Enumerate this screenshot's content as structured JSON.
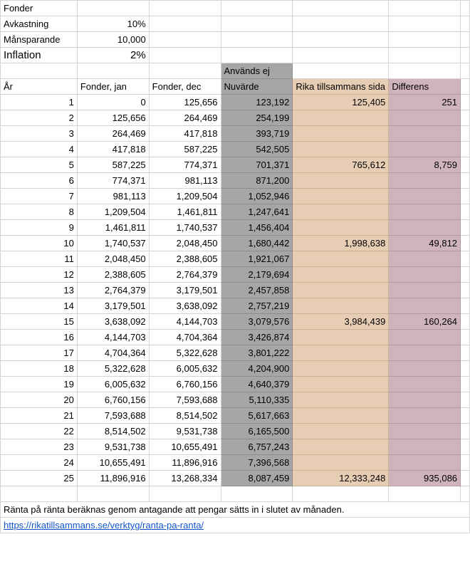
{
  "params": {
    "fonder_label": "Fonder",
    "avkastning_label": "Avkastning",
    "avkastning_value": "10%",
    "manspar_label": "Månsparande",
    "manspar_value": "10,000",
    "inflation_label": "Inflation",
    "inflation_value": "2%"
  },
  "headers": {
    "unused_note": "Används ej",
    "year": "År",
    "fonder_jan": "Fonder, jan",
    "fonder_dec": "Fonder, dec",
    "nuvarde": "Nuvärde",
    "rika_sida": "Rika tillsammans sida",
    "differens": "Differens"
  },
  "rows": [
    {
      "year": "1",
      "jan": "0",
      "dec": "125,656",
      "nuv": "123,192",
      "rika": "125,405",
      "diff": "251"
    },
    {
      "year": "2",
      "jan": "125,656",
      "dec": "264,469",
      "nuv": "254,199",
      "rika": "",
      "diff": ""
    },
    {
      "year": "3",
      "jan": "264,469",
      "dec": "417,818",
      "nuv": "393,719",
      "rika": "",
      "diff": ""
    },
    {
      "year": "4",
      "jan": "417,818",
      "dec": "587,225",
      "nuv": "542,505",
      "rika": "",
      "diff": ""
    },
    {
      "year": "5",
      "jan": "587,225",
      "dec": "774,371",
      "nuv": "701,371",
      "rika": "765,612",
      "diff": "8,759"
    },
    {
      "year": "6",
      "jan": "774,371",
      "dec": "981,113",
      "nuv": "871,200",
      "rika": "",
      "diff": ""
    },
    {
      "year": "7",
      "jan": "981,113",
      "dec": "1,209,504",
      "nuv": "1,052,946",
      "rika": "",
      "diff": ""
    },
    {
      "year": "8",
      "jan": "1,209,504",
      "dec": "1,461,811",
      "nuv": "1,247,641",
      "rika": "",
      "diff": ""
    },
    {
      "year": "9",
      "jan": "1,461,811",
      "dec": "1,740,537",
      "nuv": "1,456,404",
      "rika": "",
      "diff": ""
    },
    {
      "year": "10",
      "jan": "1,740,537",
      "dec": "2,048,450",
      "nuv": "1,680,442",
      "rika": "1,998,638",
      "diff": "49,812"
    },
    {
      "year": "11",
      "jan": "2,048,450",
      "dec": "2,388,605",
      "nuv": "1,921,067",
      "rika": "",
      "diff": ""
    },
    {
      "year": "12",
      "jan": "2,388,605",
      "dec": "2,764,379",
      "nuv": "2,179,694",
      "rika": "",
      "diff": ""
    },
    {
      "year": "13",
      "jan": "2,764,379",
      "dec": "3,179,501",
      "nuv": "2,457,858",
      "rika": "",
      "diff": ""
    },
    {
      "year": "14",
      "jan": "3,179,501",
      "dec": "3,638,092",
      "nuv": "2,757,219",
      "rika": "",
      "diff": ""
    },
    {
      "year": "15",
      "jan": "3,638,092",
      "dec": "4,144,703",
      "nuv": "3,079,576",
      "rika": "3,984,439",
      "diff": "160,264"
    },
    {
      "year": "16",
      "jan": "4,144,703",
      "dec": "4,704,364",
      "nuv": "3,426,874",
      "rika": "",
      "diff": ""
    },
    {
      "year": "17",
      "jan": "4,704,364",
      "dec": "5,322,628",
      "nuv": "3,801,222",
      "rika": "",
      "diff": ""
    },
    {
      "year": "18",
      "jan": "5,322,628",
      "dec": "6,005,632",
      "nuv": "4,204,900",
      "rika": "",
      "diff": ""
    },
    {
      "year": "19",
      "jan": "6,005,632",
      "dec": "6,760,156",
      "nuv": "4,640,379",
      "rika": "",
      "diff": ""
    },
    {
      "year": "20",
      "jan": "6,760,156",
      "dec": "7,593,688",
      "nuv": "5,110,335",
      "rika": "",
      "diff": ""
    },
    {
      "year": "21",
      "jan": "7,593,688",
      "dec": "8,514,502",
      "nuv": "5,617,663",
      "rika": "",
      "diff": ""
    },
    {
      "year": "22",
      "jan": "8,514,502",
      "dec": "9,531,738",
      "nuv": "6,165,500",
      "rika": "",
      "diff": ""
    },
    {
      "year": "23",
      "jan": "9,531,738",
      "dec": "10,655,491",
      "nuv": "6,757,243",
      "rika": "",
      "diff": ""
    },
    {
      "year": "24",
      "jan": "10,655,491",
      "dec": "11,896,916",
      "nuv": "7,396,568",
      "rika": "",
      "diff": ""
    },
    {
      "year": "25",
      "jan": "11,896,916",
      "dec": "13,268,334",
      "nuv": "8,087,459",
      "rika": "12,333,248",
      "diff": "935,086"
    }
  ],
  "footer": {
    "note": "Ränta på ränta beräknas genom antagande att pengar sätts in i slutet av månaden.",
    "link": "https://rikatillsammans.se/verktyg/ranta-pa-ranta/"
  },
  "colors": {
    "unused_column": "#a6a6a6",
    "rika_column": "#e7cdb4",
    "differens_column": "#cfb3bd",
    "link": "#1155cc",
    "gridline": "#d4d4d4"
  }
}
